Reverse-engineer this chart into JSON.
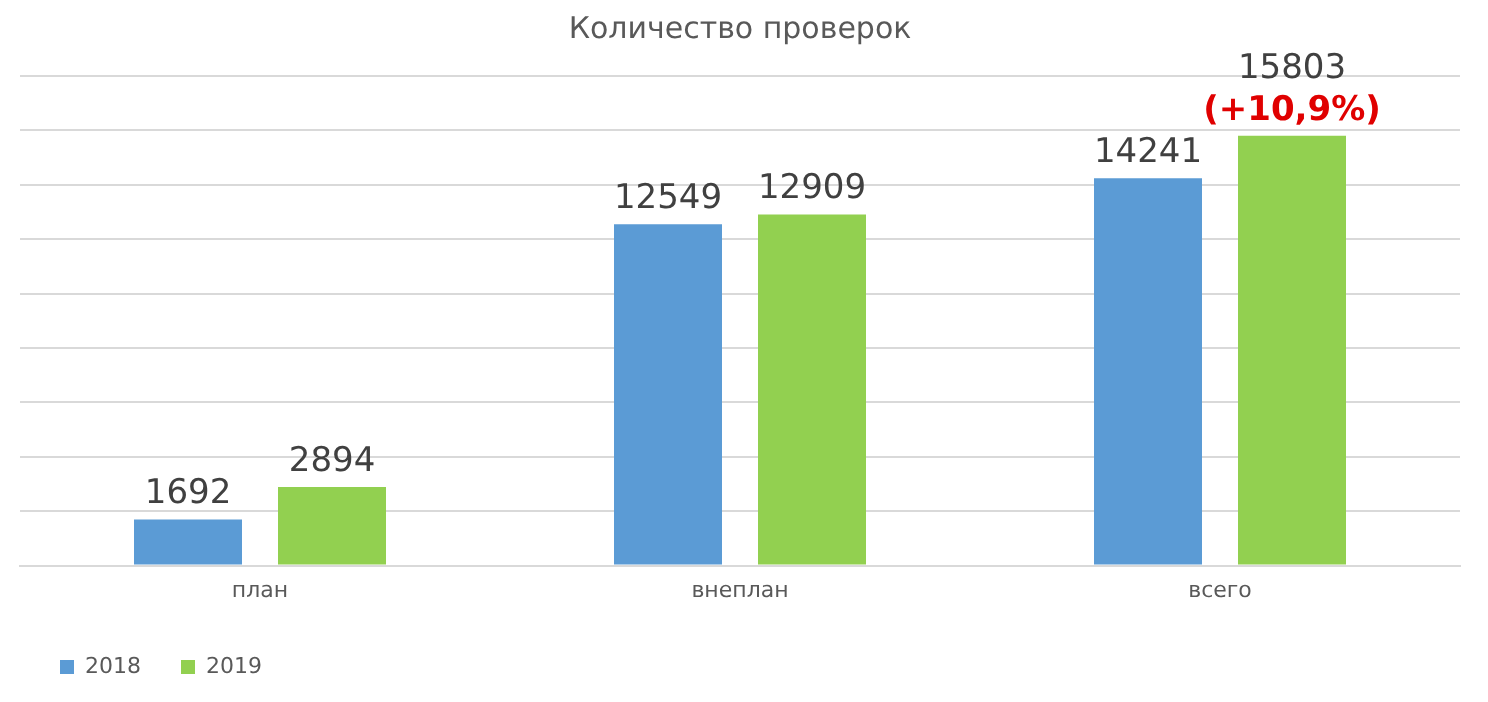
{
  "chart_data": {
    "type": "bar",
    "title": "Количество проверок",
    "categories": [
      "план",
      "внеплан",
      "всего"
    ],
    "series": [
      {
        "name": "2018",
        "color": "#5b9bd5",
        "values": [
          1692,
          12549,
          14241
        ]
      },
      {
        "name": "2019",
        "color": "#92d050",
        "values": [
          2894,
          12909,
          15803
        ]
      }
    ],
    "ylim": [
      0,
      18000
    ],
    "yticks": [
      {
        "value": 0,
        "label": null
      },
      {
        "value": 2000,
        "label": null
      },
      {
        "value": 4000,
        "label": null
      },
      {
        "value": 6000,
        "label": null
      },
      {
        "value": 8000,
        "label": null
      },
      {
        "value": 10000,
        "label": null
      },
      {
        "value": 12000,
        "label": null
      },
      {
        "value": 14000,
        "label": null
      },
      {
        "value": 16000,
        "label": null
      },
      {
        "value": 18000,
        "label": null
      }
    ],
    "tick_labels": "x",
    "grid": "y",
    "legend": "bottom left",
    "data_labels": true,
    "annotations": [
      "(+10,9%)"
    ]
  }
}
